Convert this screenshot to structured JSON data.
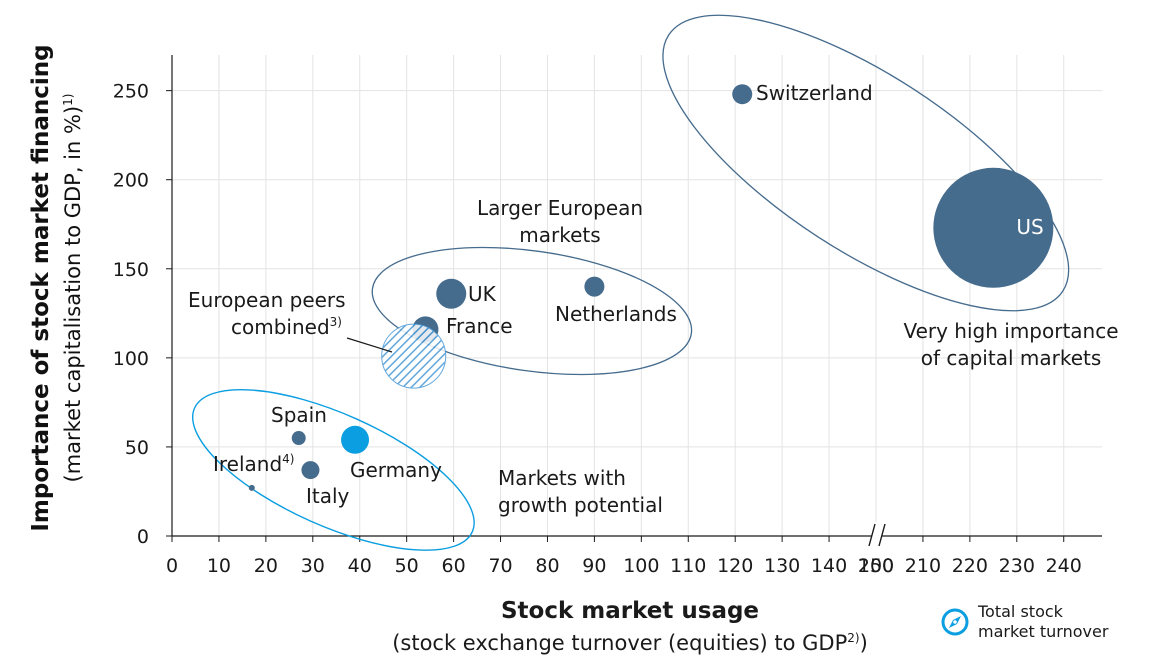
{
  "chart_data": {
    "type": "bubble",
    "ylabel_main": "Importance of stock market financing",
    "ylabel_sub": "(market capitalisation to GDP, in %)",
    "ylabel_sup": "1)",
    "xlabel_main": "Stock market usage",
    "xlabel_sub_before": "(stock exchange turnover (equities) to GDP",
    "xlabel_sub_sup": "2)",
    "xlabel_sub_after": ")",
    "xlim": [
      0,
      240
    ],
    "x_axis_break": [
      150,
      200
    ],
    "xticks": [
      "0",
      "10",
      "20",
      "30",
      "40",
      "50",
      "60",
      "70",
      "80",
      "90",
      "100",
      "110",
      "120",
      "130",
      "140",
      "150",
      "200",
      "210",
      "220",
      "230",
      "240"
    ],
    "ylim": [
      0,
      270
    ],
    "yticks": [
      "0",
      "50",
      "100",
      "150",
      "200",
      "250"
    ],
    "points": [
      {
        "name": "Switzerland",
        "x": 121.5,
        "y": 248,
        "size": 10,
        "color": "#456b8d"
      },
      {
        "name": "US",
        "x": 225,
        "y": 173,
        "size": 60,
        "color": "#456b8d"
      },
      {
        "name": "UK",
        "x": 59.5,
        "y": 136,
        "size": 15,
        "color": "#456b8d"
      },
      {
        "name": "Netherlands",
        "x": 90,
        "y": 140,
        "size": 10,
        "color": "#456b8d"
      },
      {
        "name": "France",
        "x": 54,
        "y": 116,
        "size": 13,
        "color": "#456b8d"
      },
      {
        "name": "European peers combined",
        "x": 51.5,
        "y": 101,
        "size": 32,
        "color": "#4a9ad6",
        "pattern": "hatched"
      },
      {
        "name": "Spain",
        "x": 27,
        "y": 55,
        "size": 7,
        "color": "#456b8d"
      },
      {
        "name": "Germany",
        "x": 39,
        "y": 54,
        "size": 14,
        "color": "#0b9ee0"
      },
      {
        "name": "Italy",
        "x": 29.5,
        "y": 37,
        "size": 9,
        "color": "#456b8d"
      },
      {
        "name": "Ireland",
        "x": 17,
        "y": 27,
        "size": 3,
        "color": "#456b8d"
      }
    ],
    "labels": {
      "switzerland": "Switzerland",
      "us": "US",
      "uk": "UK",
      "netherlands": "Netherlands",
      "france": "France",
      "peers_line1": "European peers",
      "peers_line2": "combined",
      "peers_sup": "3)",
      "spain": "Spain",
      "ireland": "Ireland",
      "ireland_sup": "4)",
      "germany": "Germany",
      "italy": "Italy"
    },
    "annotations": {
      "larger_line1": "Larger European",
      "larger_line2": "markets",
      "growth_line1": "Markets with",
      "growth_line2": "growth potential",
      "veryhigh_line1": "Very high importance",
      "veryhigh_line2": "of capital markets"
    },
    "legend": {
      "text_line1": "Total stock",
      "text_line2": "market turnover"
    },
    "colors": {
      "dark_blue": "#456b8d",
      "light_blue": "#0b9ee0",
      "hatch_blue": "#4a9ad6",
      "grid": "#e3e3e3"
    }
  }
}
